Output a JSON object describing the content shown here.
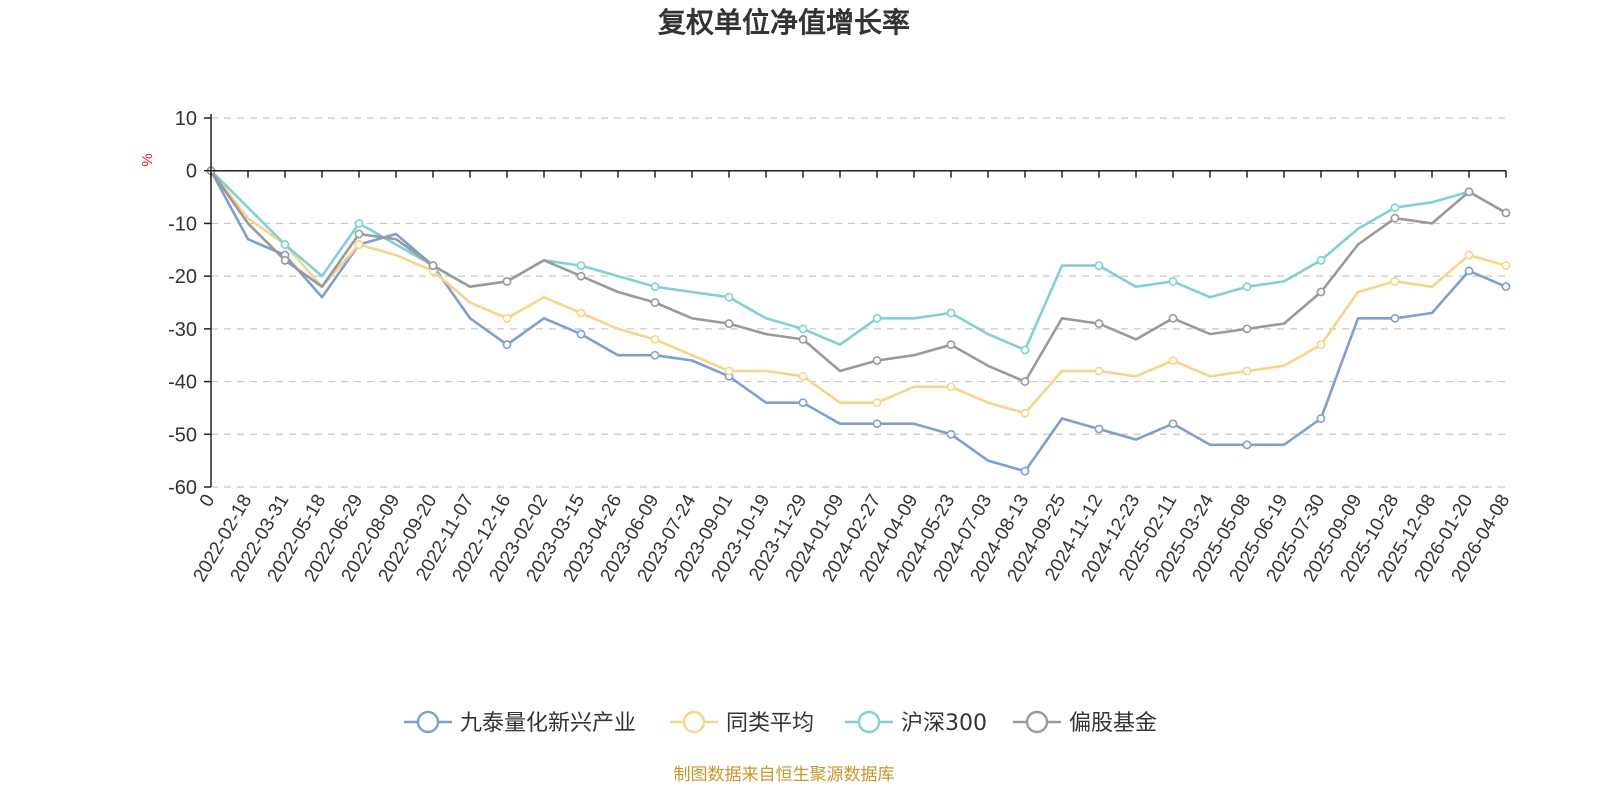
{
  "chart_data": {
    "type": "line",
    "title": "复权单位净值增长率",
    "ylabel": "%",
    "xlabel": "",
    "ylim": [
      -60,
      10
    ],
    "y_ticks": [
      10,
      0,
      -10,
      -20,
      -30,
      -40,
      -50,
      -60
    ],
    "categories": [
      "0",
      "2022-02-18",
      "2022-03-31",
      "2022-05-18",
      "2022-06-29",
      "2022-08-09",
      "2022-09-20",
      "2022-11-07",
      "2022-12-16",
      "2023-02-02",
      "2023-03-15",
      "2023-04-26",
      "2023-06-09",
      "2023-07-24",
      "2023-09-01",
      "2023-10-19",
      "2023-11-29",
      "2024-01-09",
      "2024-02-27",
      "2024-04-09",
      "2024-05-23",
      "2024-07-03",
      "2024-08-13",
      "2024-09-25",
      "2024-11-12",
      "2024-12-23",
      "2025-02-11",
      "2025-03-24",
      "2025-05-08",
      "2025-06-19",
      "2025-07-30",
      "2025-09-09",
      "2025-10-28",
      "2025-12-08",
      "2026-01-20",
      "2026-04-08"
    ],
    "series": [
      {
        "name": "九泰量化新兴产业",
        "color": "#7f9fd4",
        "values": [
          0,
          -13,
          -16,
          -24,
          -14,
          -12,
          -18,
          -28,
          -33,
          -28,
          -31,
          -35,
          -35,
          -36,
          -39,
          -44,
          -44,
          -48,
          -48,
          -48,
          -50,
          -55,
          -57,
          -47,
          -49,
          -51,
          -48,
          -52,
          -52,
          -52,
          -47,
          -28,
          -28,
          -27,
          -19,
          -22
        ]
      },
      {
        "name": "同类平均",
        "color": "#f9d488",
        "values": [
          0,
          -9,
          -14,
          -22,
          -14,
          -16,
          -19,
          -25,
          -28,
          -24,
          -27,
          -30,
          -32,
          -35,
          -38,
          -38,
          -39,
          -44,
          -44,
          -41,
          -41,
          -44,
          -46,
          -38,
          -38,
          -39,
          -36,
          -39,
          -38,
          -37,
          -33,
          -23,
          -21,
          -22,
          -16,
          -18
        ]
      },
      {
        "name": "沪深300",
        "color": "#7fd1d3",
        "values": [
          0,
          -7,
          -14,
          -20,
          -10,
          -14,
          -18,
          -22,
          -21,
          -17,
          -18,
          -20,
          -22,
          -23,
          -24,
          -28,
          -30,
          -33,
          -28,
          -28,
          -27,
          -31,
          -34,
          -18,
          -18,
          -22,
          -21,
          -24,
          -22,
          -21,
          -17,
          -11,
          -7,
          -6,
          -4,
          -8
        ]
      },
      {
        "name": "偏股基金",
        "color": "#9a9a9a",
        "values": [
          0,
          -10,
          -17,
          -22,
          -12,
          -13,
          -18,
          -22,
          -21,
          -17,
          -20,
          -23,
          -25,
          -28,
          -29,
          -31,
          -32,
          -38,
          -36,
          -35,
          -33,
          -37,
          -40,
          -28,
          -29,
          -32,
          -28,
          -31,
          -30,
          -29,
          -23,
          -14,
          -9,
          -10,
          -4,
          -8
        ]
      }
    ],
    "legend_position": "bottom-center"
  },
  "source_note": "制图数据来自恒生聚源数据库"
}
